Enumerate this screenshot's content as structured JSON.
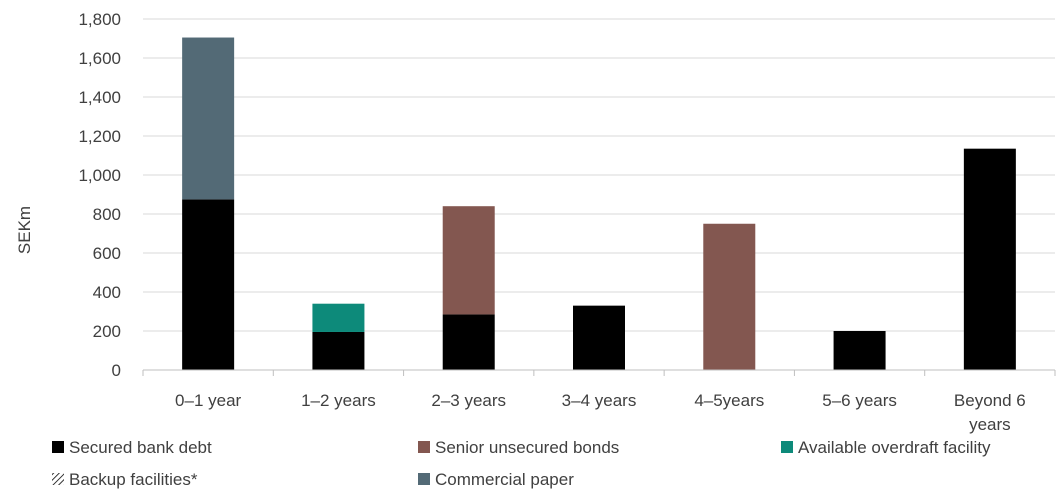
{
  "chart_data": {
    "type": "bar",
    "stacked": true,
    "ylabel": "SEKm",
    "ylim": [
      0,
      1800
    ],
    "yticks": [
      0,
      200,
      400,
      600,
      800,
      1000,
      1200,
      1400,
      1600,
      1800
    ],
    "ytick_labels": [
      "0",
      "200",
      "400",
      "600",
      "800",
      "1,000",
      "1,200",
      "1,400",
      "1,600",
      "1,800"
    ],
    "grid": true,
    "legend_position": "bottom",
    "categories": [
      "0–1 year",
      "1–2 years",
      "2–3 years",
      "3–4 years",
      "4–5years",
      "5–6 years",
      "Beyond 6 years"
    ],
    "category_label_lines": [
      [
        "0–1 year"
      ],
      [
        "1–2 years"
      ],
      [
        "2–3 years"
      ],
      [
        "3–4 years"
      ],
      [
        "4–5years"
      ],
      [
        "5–6 years"
      ],
      [
        "Beyond 6",
        "years"
      ]
    ],
    "series": [
      {
        "name": "Secured bank debt",
        "color": "#000000",
        "values": [
          875,
          195,
          285,
          330,
          0,
          200,
          1135
        ]
      },
      {
        "name": "Senior unsecured bonds",
        "color": "#835750",
        "values": [
          0,
          0,
          555,
          0,
          750,
          0,
          0
        ]
      },
      {
        "name": "Available overdraft facility",
        "color": "#0d8a7a",
        "values": [
          0,
          145,
          0,
          0,
          0,
          0,
          0
        ]
      },
      {
        "name": "Backup facilities*",
        "color": "#ffffff",
        "pattern": "hatched",
        "values": [
          0,
          0,
          0,
          0,
          0,
          0,
          0
        ]
      },
      {
        "name": "Commercial paper",
        "color": "#536a76",
        "values": [
          830,
          0,
          0,
          0,
          0,
          0,
          0
        ]
      }
    ]
  }
}
